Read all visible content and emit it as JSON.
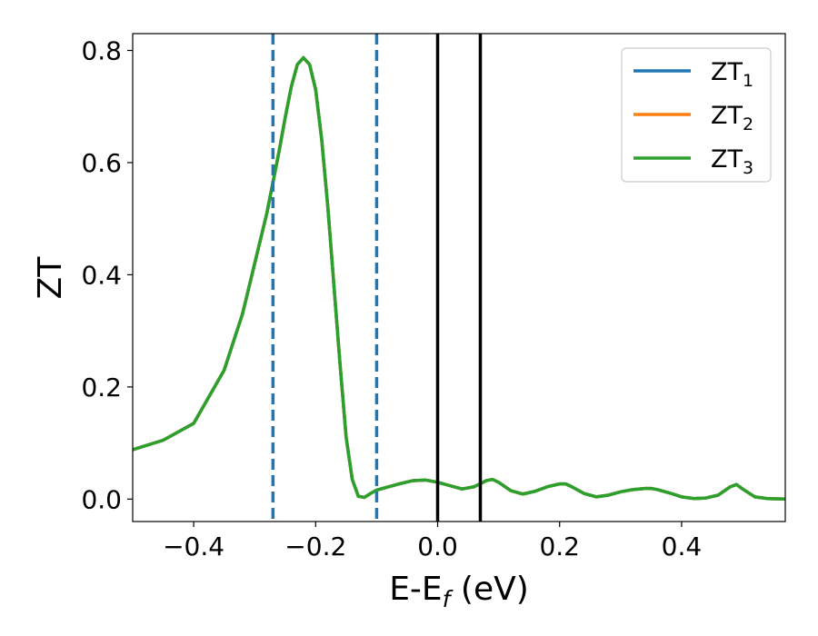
{
  "chart_data": {
    "type": "line",
    "title": "",
    "xlabel": "E-E",
    "xlabel_sub": "f",
    "xlabel_unit": " (eV)",
    "ylabel": "ZT",
    "xlim": [
      -0.5,
      0.57
    ],
    "ylim": [
      -0.04,
      0.83
    ],
    "xticks": [
      -0.4,
      -0.2,
      0.0,
      0.2,
      0.4
    ],
    "xtick_labels": [
      "−0.4",
      "−0.2",
      "0.0",
      "0.2",
      "0.4"
    ],
    "yticks": [
      0.0,
      0.2,
      0.4,
      0.6,
      0.8
    ],
    "ytick_labels": [
      "0.0",
      "0.2",
      "0.4",
      "0.6",
      "0.8"
    ],
    "grid": false,
    "legend_position": "top-right",
    "series": [
      {
        "name": "ZT",
        "sub": "1",
        "color": "#1f77b4",
        "x": [
          -0.5,
          -0.45,
          -0.4,
          -0.35,
          -0.32,
          -0.3,
          -0.28,
          -0.26,
          -0.25,
          -0.24,
          -0.23,
          -0.22,
          -0.21,
          -0.2,
          -0.19,
          -0.18,
          -0.17,
          -0.16,
          -0.15,
          -0.14,
          -0.13,
          -0.12,
          -0.11,
          -0.1,
          -0.08,
          -0.06,
          -0.04,
          -0.02,
          0.0,
          0.02,
          0.04,
          0.06,
          0.08,
          0.09,
          0.1,
          0.12,
          0.14,
          0.16,
          0.18,
          0.2,
          0.21,
          0.22,
          0.24,
          0.26,
          0.28,
          0.3,
          0.32,
          0.34,
          0.35,
          0.36,
          0.38,
          0.4,
          0.42,
          0.44,
          0.46,
          0.48,
          0.49,
          0.5,
          0.52,
          0.54,
          0.57
        ],
        "y": [
          0.088,
          0.105,
          0.135,
          0.23,
          0.33,
          0.42,
          0.51,
          0.62,
          0.68,
          0.735,
          0.775,
          0.787,
          0.775,
          0.73,
          0.64,
          0.52,
          0.38,
          0.24,
          0.11,
          0.035,
          0.005,
          0.003,
          0.01,
          0.016,
          0.022,
          0.028,
          0.033,
          0.034,
          0.03,
          0.024,
          0.018,
          0.022,
          0.033,
          0.035,
          0.03,
          0.015,
          0.009,
          0.014,
          0.022,
          0.027,
          0.027,
          0.022,
          0.01,
          0.004,
          0.007,
          0.013,
          0.017,
          0.019,
          0.019,
          0.017,
          0.011,
          0.004,
          0.001,
          0.002,
          0.007,
          0.022,
          0.026,
          0.018,
          0.004,
          0.001,
          0.0
        ]
      },
      {
        "name": "ZT",
        "sub": "2",
        "color": "#ff7f0e",
        "x": [
          -0.5,
          -0.45,
          -0.4,
          -0.35,
          -0.32,
          -0.3,
          -0.28,
          -0.26,
          -0.25,
          -0.24,
          -0.23,
          -0.22,
          -0.21,
          -0.2,
          -0.19,
          -0.18,
          -0.17,
          -0.16,
          -0.15,
          -0.14,
          -0.13,
          -0.12,
          -0.11,
          -0.1,
          -0.08,
          -0.06,
          -0.04,
          -0.02,
          0.0,
          0.02,
          0.04,
          0.06,
          0.08,
          0.09,
          0.1,
          0.12,
          0.14,
          0.16,
          0.18,
          0.2,
          0.21,
          0.22,
          0.24,
          0.26,
          0.28,
          0.3,
          0.32,
          0.34,
          0.35,
          0.36,
          0.38,
          0.4,
          0.42,
          0.44,
          0.46,
          0.48,
          0.49,
          0.5,
          0.52,
          0.54,
          0.57
        ],
        "y": [
          0.088,
          0.105,
          0.135,
          0.23,
          0.33,
          0.42,
          0.51,
          0.62,
          0.68,
          0.735,
          0.775,
          0.787,
          0.775,
          0.73,
          0.64,
          0.52,
          0.38,
          0.24,
          0.11,
          0.035,
          0.005,
          0.003,
          0.01,
          0.016,
          0.022,
          0.028,
          0.033,
          0.034,
          0.03,
          0.024,
          0.018,
          0.022,
          0.033,
          0.035,
          0.03,
          0.015,
          0.009,
          0.014,
          0.022,
          0.027,
          0.027,
          0.022,
          0.01,
          0.004,
          0.007,
          0.013,
          0.017,
          0.019,
          0.019,
          0.017,
          0.011,
          0.004,
          0.001,
          0.002,
          0.007,
          0.022,
          0.026,
          0.018,
          0.004,
          0.001,
          0.0
        ]
      },
      {
        "name": "ZT",
        "sub": "3",
        "color": "#2ca02c",
        "x": [
          -0.5,
          -0.45,
          -0.4,
          -0.35,
          -0.32,
          -0.3,
          -0.28,
          -0.26,
          -0.25,
          -0.24,
          -0.23,
          -0.22,
          -0.21,
          -0.2,
          -0.19,
          -0.18,
          -0.17,
          -0.16,
          -0.15,
          -0.14,
          -0.13,
          -0.12,
          -0.11,
          -0.1,
          -0.08,
          -0.06,
          -0.04,
          -0.02,
          0.0,
          0.02,
          0.04,
          0.06,
          0.08,
          0.09,
          0.1,
          0.12,
          0.14,
          0.16,
          0.18,
          0.2,
          0.21,
          0.22,
          0.24,
          0.26,
          0.28,
          0.3,
          0.32,
          0.34,
          0.35,
          0.36,
          0.38,
          0.4,
          0.42,
          0.44,
          0.46,
          0.48,
          0.49,
          0.5,
          0.52,
          0.54,
          0.57
        ],
        "y": [
          0.088,
          0.105,
          0.135,
          0.23,
          0.33,
          0.42,
          0.51,
          0.62,
          0.68,
          0.735,
          0.775,
          0.787,
          0.775,
          0.73,
          0.64,
          0.52,
          0.38,
          0.24,
          0.11,
          0.035,
          0.005,
          0.003,
          0.01,
          0.016,
          0.022,
          0.028,
          0.033,
          0.034,
          0.03,
          0.024,
          0.018,
          0.022,
          0.033,
          0.035,
          0.03,
          0.015,
          0.009,
          0.014,
          0.022,
          0.027,
          0.027,
          0.022,
          0.01,
          0.004,
          0.007,
          0.013,
          0.017,
          0.019,
          0.019,
          0.017,
          0.011,
          0.004,
          0.001,
          0.002,
          0.007,
          0.022,
          0.026,
          0.018,
          0.004,
          0.001,
          0.0
        ]
      }
    ],
    "vlines": [
      {
        "x": -0.27,
        "style": "dashed",
        "color": "#1f77b4"
      },
      {
        "x": -0.1,
        "style": "dashed",
        "color": "#1f77b4"
      },
      {
        "x": 0.0,
        "style": "solid",
        "color": "#000000"
      },
      {
        "x": 0.07,
        "style": "solid",
        "color": "#000000"
      }
    ]
  }
}
